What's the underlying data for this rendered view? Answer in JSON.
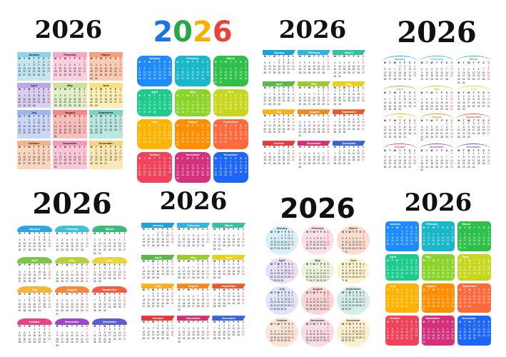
{
  "calendars": [
    {
      "year": "2026"
    },
    {
      "year": "2026",
      "letters": [
        {
          "ch": "2",
          "color": "#1a73e8"
        },
        {
          "ch": "0",
          "color": "#28a745"
        },
        {
          "ch": "2",
          "color": "#f6b100"
        },
        {
          "ch": "6",
          "color": "#e8433b"
        }
      ]
    },
    {
      "year": "2026"
    },
    {
      "year": "2026"
    },
    {
      "year": "2026"
    },
    {
      "year": "2026"
    },
    {
      "year": "2026"
    },
    {
      "year": "2026"
    }
  ],
  "months": [
    "January",
    "February",
    "March",
    "April",
    "May",
    "June",
    "July",
    "August",
    "September",
    "October",
    "November",
    "December"
  ],
  "weekday_labels": [
    "M",
    "T",
    "W",
    "T",
    "F",
    "S",
    "S"
  ],
  "month_start_offsets": [
    3,
    6,
    6,
    2,
    4,
    0,
    2,
    5,
    1,
    3,
    6,
    1
  ],
  "month_lengths": [
    31,
    28,
    31,
    30,
    31,
    30,
    31,
    31,
    30,
    31,
    30,
    31
  ],
  "palettes": {
    "pastel": [
      "#8fd3e8",
      "#f6a7c9",
      "#f7a07a",
      "#b9a7e6",
      "#c9e39a",
      "#f9e27a",
      "#9fb6f0",
      "#f28a8a",
      "#7fd1c2",
      "#f3b48c",
      "#f29ab8",
      "#f5d57c"
    ],
    "bright": [
      "#1e8bff",
      "#19b7c9",
      "#2fbf4a",
      "#1ecb8d",
      "#8bd42b",
      "#c7d61e",
      "#ffb300",
      "#ff8f00",
      "#ff6a3d",
      "#f0435b",
      "#d4317c",
      "#1e66f5"
    ],
    "light": [
      "#1aa3d6",
      "#2db4e3",
      "#35c0a0",
      "#5ab946",
      "#9bcc2e",
      "#e7d31c",
      "#f7b21a",
      "#f48a1c",
      "#ea5a2a",
      "#e63a3a",
      "#d33170",
      "#3b63d8"
    ],
    "arc": [
      "#2aa6e0",
      "#3fbfd8",
      "#3dbb7d",
      "#7cc74a",
      "#b5d23d",
      "#e9d43a",
      "#f6b53a",
      "#f38a3b",
      "#ef5d45",
      "#e5438a",
      "#9c47c8",
      "#5b5fd1"
    ]
  }
}
